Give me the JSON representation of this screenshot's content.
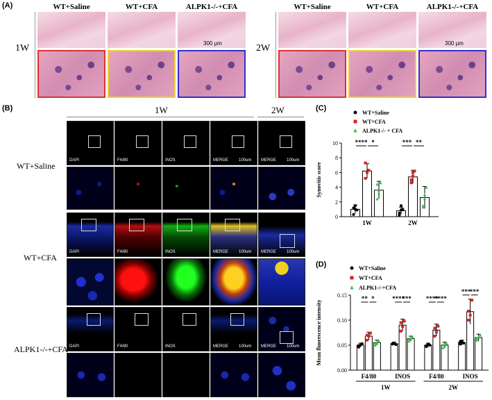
{
  "panels": {
    "a": "(A)",
    "b": "(B)",
    "c": "(C)",
    "d": "(D)"
  },
  "panel_a": {
    "groups": [
      "WT+Saline",
      "WT+CFA",
      "ALPK1-/-+CFA"
    ],
    "left_timepoint": "1W",
    "right_timepoint": "2W",
    "scale_bar": "300 μm",
    "frame_colors": [
      "#e03030",
      "#f0d030",
      "#3030d0"
    ]
  },
  "panel_b": {
    "header_1w": "1W",
    "header_2w": "2W",
    "rows": [
      "WT+Saline",
      "WT+CFA",
      "ALPK1-/-+CFA"
    ],
    "channels": [
      "DAPI",
      "F4/80",
      "INOS",
      "MERGE",
      "MERGE"
    ],
    "scale_bar": "100um"
  },
  "chart_data": [
    {
      "type": "bar",
      "ylabel": "Synovitis score",
      "ylim": [
        0,
        10
      ],
      "yticks": [
        0,
        2,
        4,
        6,
        8,
        10
      ],
      "categories": [
        "1W",
        "2W"
      ],
      "series": [
        {
          "name": "WT+Saline",
          "values": [
            1.0,
            0.8
          ],
          "err": [
            0.6,
            0.5
          ],
          "points": [
            [
              0.3,
              1.0,
              0.9,
              1.2,
              1.5
            ],
            [
              0.2,
              0.9,
              1.0,
              0.5,
              1.5
            ]
          ]
        },
        {
          "name": "WT+CFA",
          "values": [
            6.2,
            5.4
          ],
          "err": [
            1.0,
            0.9
          ],
          "points": [
            [
              5.2,
              6.0,
              6.3,
              7.3,
              6.0
            ],
            [
              4.6,
              5.5,
              6.2,
              5.0,
              6.0
            ]
          ]
        },
        {
          "name": "ALPK1-/- + CFA",
          "values": [
            3.6,
            2.6
          ],
          "err": [
            1.2,
            1.5
          ],
          "points": [
            [
              2.4,
              3.5,
              4.6,
              4.4,
              3.2
            ],
            [
              1.3,
              2.5,
              4.0,
              1.5,
              3.0
            ]
          ]
        }
      ],
      "significance": [
        {
          "cat": 0,
          "a": 0,
          "b": 1,
          "label": "****"
        },
        {
          "cat": 0,
          "a": 1,
          "b": 2,
          "label": "*"
        },
        {
          "cat": 1,
          "a": 0,
          "b": 1,
          "label": "***"
        },
        {
          "cat": 1,
          "a": 1,
          "b": 2,
          "label": "**"
        }
      ],
      "colors": [
        "#000000",
        "#e02020",
        "#30c040"
      ]
    },
    {
      "type": "bar",
      "ylabel": "Mean fluorescence intensity",
      "ylim": [
        0,
        0.15
      ],
      "yticks": [
        "0.00",
        "0.05",
        "0.10",
        "0.15"
      ],
      "categories": [
        "F4/80",
        "INOS",
        "F4/80",
        "INOS"
      ],
      "groups": [
        "1W",
        "1W",
        "2W",
        "2W"
      ],
      "group_labels": [
        "1W",
        "2W"
      ],
      "series": [
        {
          "name": "WT+Saline",
          "values": [
            0.05,
            0.053,
            0.05,
            0.055
          ],
          "err": [
            0.004,
            0.003,
            0.004,
            0.005
          ],
          "points": [
            [
              0.046,
              0.05,
              0.053,
              0.049
            ],
            [
              0.052,
              0.054,
              0.051,
              0.053
            ],
            [
              0.047,
              0.052,
              0.05,
              0.049
            ],
            [
              0.052,
              0.058,
              0.054,
              0.057
            ]
          ]
        },
        {
          "name": "WT+CFA",
          "values": [
            0.068,
            0.09,
            0.08,
            0.117
          ],
          "err": [
            0.008,
            0.012,
            0.012,
            0.025
          ],
          "points": [
            [
              0.06,
              0.068,
              0.074,
              0.07
            ],
            [
              0.078,
              0.087,
              0.098,
              0.095
            ],
            [
              0.068,
              0.076,
              0.088,
              0.084
            ],
            [
              0.1,
              0.11,
              0.14,
              0.118
            ]
          ]
        },
        {
          "name": "ALPK1-/-+CFA",
          "values": [
            0.055,
            0.063,
            0.05,
            0.065
          ],
          "err": [
            0.005,
            0.005,
            0.006,
            0.007
          ],
          "points": [
            [
              0.05,
              0.056,
              0.058,
              0.054
            ],
            [
              0.058,
              0.064,
              0.066,
              0.062
            ],
            [
              0.045,
              0.05,
              0.054,
              0.051
            ],
            [
              0.06,
              0.066,
              0.07,
              0.063
            ]
          ]
        }
      ],
      "significance": [
        {
          "cat": 0,
          "a": 0,
          "b": 1,
          "label": "**"
        },
        {
          "cat": 0,
          "a": 1,
          "b": 2,
          "label": "*"
        },
        {
          "cat": 1,
          "a": 0,
          "b": 1,
          "label": "****"
        },
        {
          "cat": 1,
          "a": 1,
          "b": 2,
          "label": "***"
        },
        {
          "cat": 2,
          "a": 0,
          "b": 1,
          "label": "****"
        },
        {
          "cat": 2,
          "a": 1,
          "b": 2,
          "label": "****"
        },
        {
          "cat": 3,
          "a": 0,
          "b": 1,
          "label": "***"
        },
        {
          "cat": 3,
          "a": 1,
          "b": 2,
          "label": "***"
        }
      ],
      "colors": [
        "#000000",
        "#e02020",
        "#30c040"
      ]
    }
  ]
}
